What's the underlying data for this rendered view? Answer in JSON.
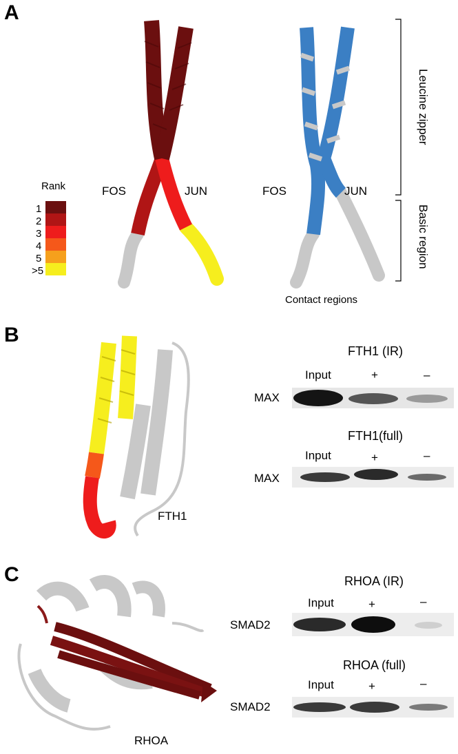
{
  "panels": {
    "A": {
      "letter": "A",
      "legend": {
        "title": "Rank",
        "items": [
          {
            "label": "1",
            "color": "#6b0f0f"
          },
          {
            "label": "2",
            "color": "#b01515"
          },
          {
            "label": "3",
            "color": "#ee1c1c"
          },
          {
            "label": "4",
            "color": "#f5581a"
          },
          {
            "label": "5",
            "color": "#f6a01c"
          },
          {
            "label": ">5",
            "color": "#f6ee1e"
          }
        ]
      },
      "left_structure": {
        "fos_label": "FOS",
        "jun_label": "JUN"
      },
      "right_structure": {
        "fos_label": "FOS",
        "jun_label": "JUN",
        "caption": "Contact regions"
      },
      "brackets": {
        "upper": "Leucine zipper",
        "lower": "Basic region"
      }
    },
    "B": {
      "letter": "B",
      "structure_label": "FTH1",
      "blots": [
        {
          "title": "FTH1 (IR)",
          "lanes": [
            "Input",
            "+",
            "–"
          ],
          "row_label": "MAX"
        },
        {
          "title": "FTH1(full)",
          "lanes": [
            "Input",
            "+",
            "–"
          ],
          "row_label": "MAX"
        }
      ]
    },
    "C": {
      "letter": "C",
      "structure_label": "RHOA",
      "blots": [
        {
          "title": "RHOA (IR)",
          "lanes": [
            "Input",
            "+",
            "–"
          ],
          "row_label": "SMAD2"
        },
        {
          "title": "RHOA (full)",
          "lanes": [
            "Input",
            "+",
            "–"
          ],
          "row_label": "SMAD2"
        }
      ]
    }
  },
  "colors": {
    "helix_gray": "#c8c8c8",
    "contact_blue": "#3b7fc4",
    "rank1": "#6b0f0f",
    "rank3": "#ee1c1c",
    "rank_gt5": "#f6ee1e"
  }
}
